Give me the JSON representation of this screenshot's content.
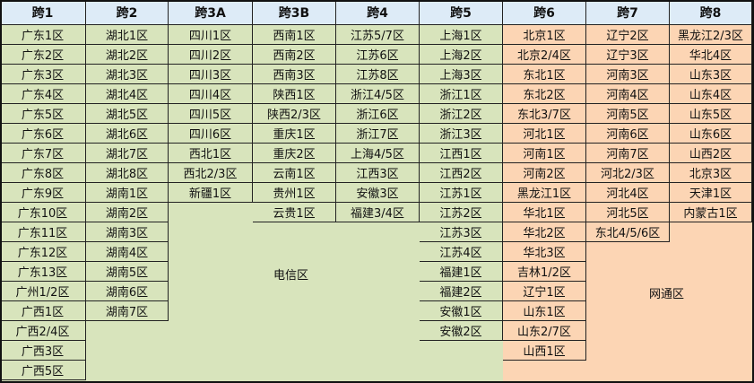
{
  "colors": {
    "header": "#DDEBF7",
    "telecom": "#D8E4BC",
    "netcom": "#FCD5B4"
  },
  "zones": {
    "telecom_label": "电信区",
    "netcom_label": "网通区"
  },
  "columns": [
    {
      "header": "跨1",
      "zone": "telecom",
      "items": [
        "广东1区",
        "广东2区",
        "广东3区",
        "广东4区",
        "广东5区",
        "广东6区",
        "广东7区",
        "广东8区",
        "广东9区",
        "广东10区",
        "广东11区",
        "广东12区",
        "广东13区",
        "广州1/2区",
        "广西1区",
        "广西2/4区",
        "广西3区",
        "广西5区"
      ]
    },
    {
      "header": "跨2",
      "zone": "telecom",
      "items": [
        "湖北1区",
        "湖北2区",
        "湖北3区",
        "湖北4区",
        "湖北5区",
        "湖北6区",
        "湖北7区",
        "湖北8区",
        "湖南1区",
        "湖南2区",
        "湖南3区",
        "湖南4区",
        "湖南5区",
        "湖南6区",
        "湖南7区"
      ]
    },
    {
      "header": "跨3A",
      "zone": "telecom",
      "items": [
        "四川1区",
        "四川2区",
        "四川3区",
        "四川4区",
        "四川5区",
        "四川6区",
        "西北1区",
        "西北2/3区",
        "新疆1区"
      ]
    },
    {
      "header": "跨3B",
      "zone": "telecom",
      "items": [
        "西南1区",
        "西南2区",
        "西南3区",
        "陕西1区",
        "陕西2/3区",
        "重庆1区",
        "重庆2区",
        "云南1区",
        "贵州1区",
        "云贵1区"
      ]
    },
    {
      "header": "跨4",
      "zone": "telecom",
      "items": [
        "江苏5/7区",
        "江苏6区",
        "江苏8区",
        "浙江4/5区",
        "浙江6区",
        "浙江7区",
        "上海4/5区",
        "江西3区",
        "安徽3区",
        "福建3/4区"
      ]
    },
    {
      "header": "跨5",
      "zone": "telecom",
      "items": [
        "上海1区",
        "上海2区",
        "上海3区",
        "浙江1区",
        "浙江2区",
        "浙江3区",
        "江西1区",
        "江西2区",
        "江苏1区",
        "江苏2区",
        "江苏3区",
        "江苏4区",
        "福建1区",
        "福建2区",
        "安徽1区",
        "安徽2区"
      ]
    },
    {
      "header": "跨6",
      "zone": "netcom",
      "items": [
        "北京1区",
        "北京2/4区",
        "东北1区",
        "东北2区",
        "东北3/7区",
        "河北1区",
        "河南1区",
        "河南2区",
        "黑龙江1区",
        "华北1区",
        "华北2区",
        "华北3区",
        "吉林1/2区",
        "辽宁1区",
        "山东1区",
        "山东2/7区",
        "山西1区"
      ]
    },
    {
      "header": "跨7",
      "zone": "netcom",
      "items": [
        "辽宁2区",
        "辽宁3区",
        "河南3区",
        "河南4区",
        "河南5区",
        "河南6区",
        "河南7区",
        "河北2/3区",
        "河北4区",
        "河北5区",
        "东北4/5/6区"
      ]
    },
    {
      "header": "跨8",
      "zone": "netcom",
      "items": [
        "黑龙江2/3区",
        "华北4区",
        "山东3区",
        "山东4区",
        "山东5区",
        "山东6区",
        "山西2区",
        "北京3区",
        "天津1区",
        "内蒙古1区"
      ]
    }
  ]
}
